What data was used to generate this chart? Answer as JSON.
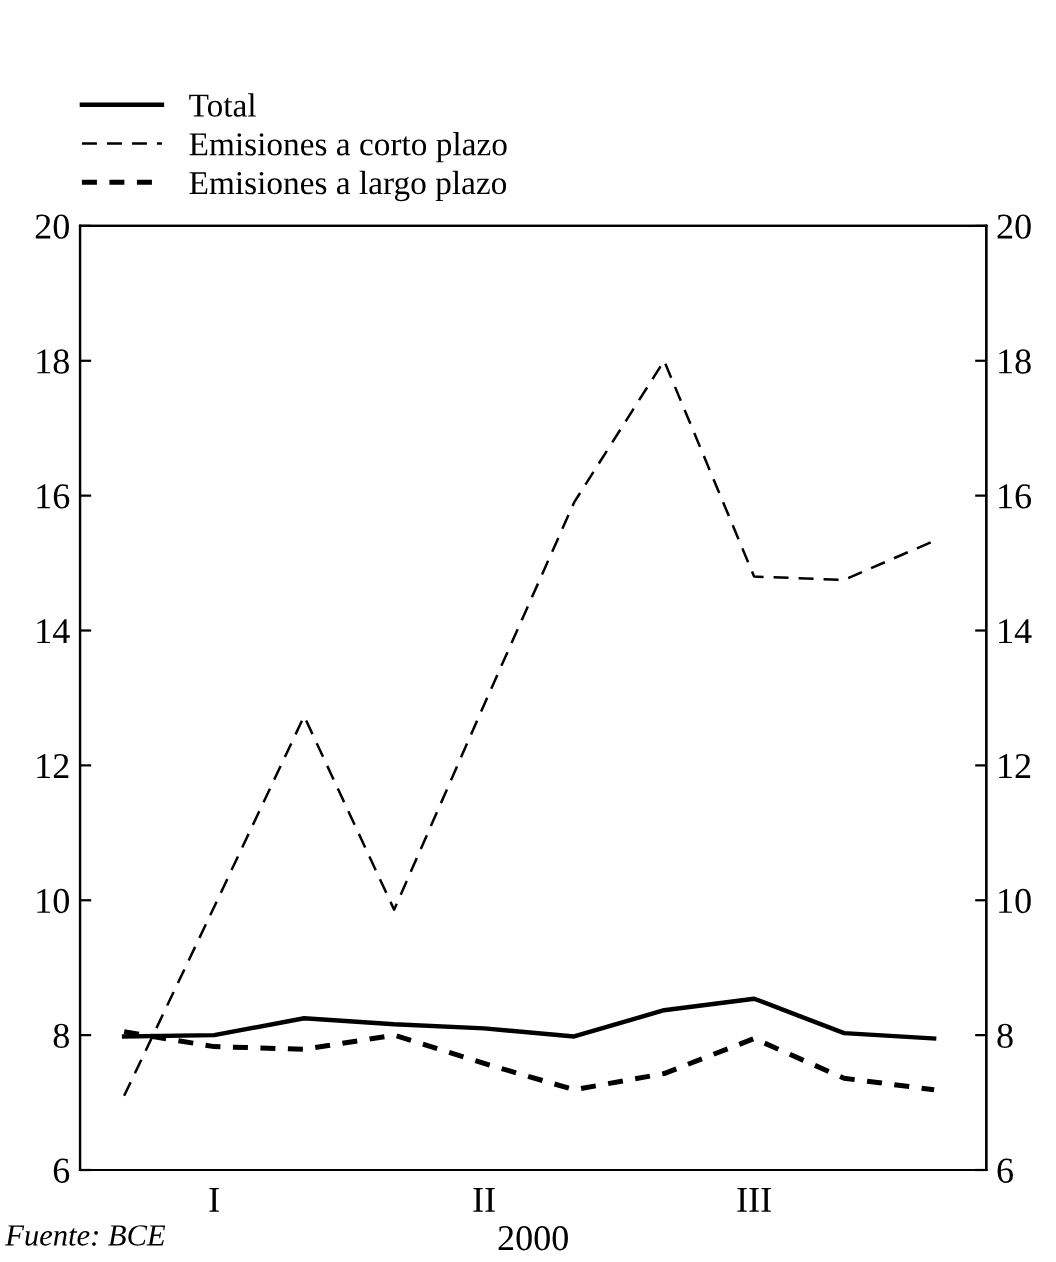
{
  "chart_data": {
    "type": "line",
    "categories": [
      null,
      "I",
      null,
      null,
      "II",
      null,
      null,
      "III",
      null,
      null
    ],
    "xlabel": "2000",
    "series": [
      {
        "name": "Total",
        "color": "#000000",
        "line_style": "solid",
        "values": [
          7.98,
          8.0,
          8.25,
          8.16,
          8.1,
          7.98,
          8.37,
          8.54,
          8.03,
          7.95
        ]
      },
      {
        "name": "Emisiones a corto plazo",
        "color": "#000000",
        "line_style": "dashed",
        "values": [
          7.1,
          9.9,
          12.73,
          9.86,
          12.9,
          15.9,
          18.0,
          14.8,
          14.75,
          15.33
        ]
      },
      {
        "name": "Emisiones a largo plazo",
        "color": "#000000",
        "line_style": "dashed",
        "values": [
          8.05,
          7.83,
          7.79,
          8.0,
          7.58,
          7.19,
          7.43,
          7.95,
          7.36,
          7.19
        ]
      }
    ],
    "ylim": [
      6,
      20
    ],
    "yticks": [
      6,
      8,
      10,
      12,
      14,
      16,
      18,
      20
    ],
    "y2lim": [
      6,
      20
    ],
    "y2ticks": [
      6,
      8,
      10,
      12,
      14,
      16,
      18,
      20
    ],
    "grid": false,
    "legend": "top left",
    "marker": "none",
    "annotations": [
      "Fuente: BCE"
    ]
  }
}
